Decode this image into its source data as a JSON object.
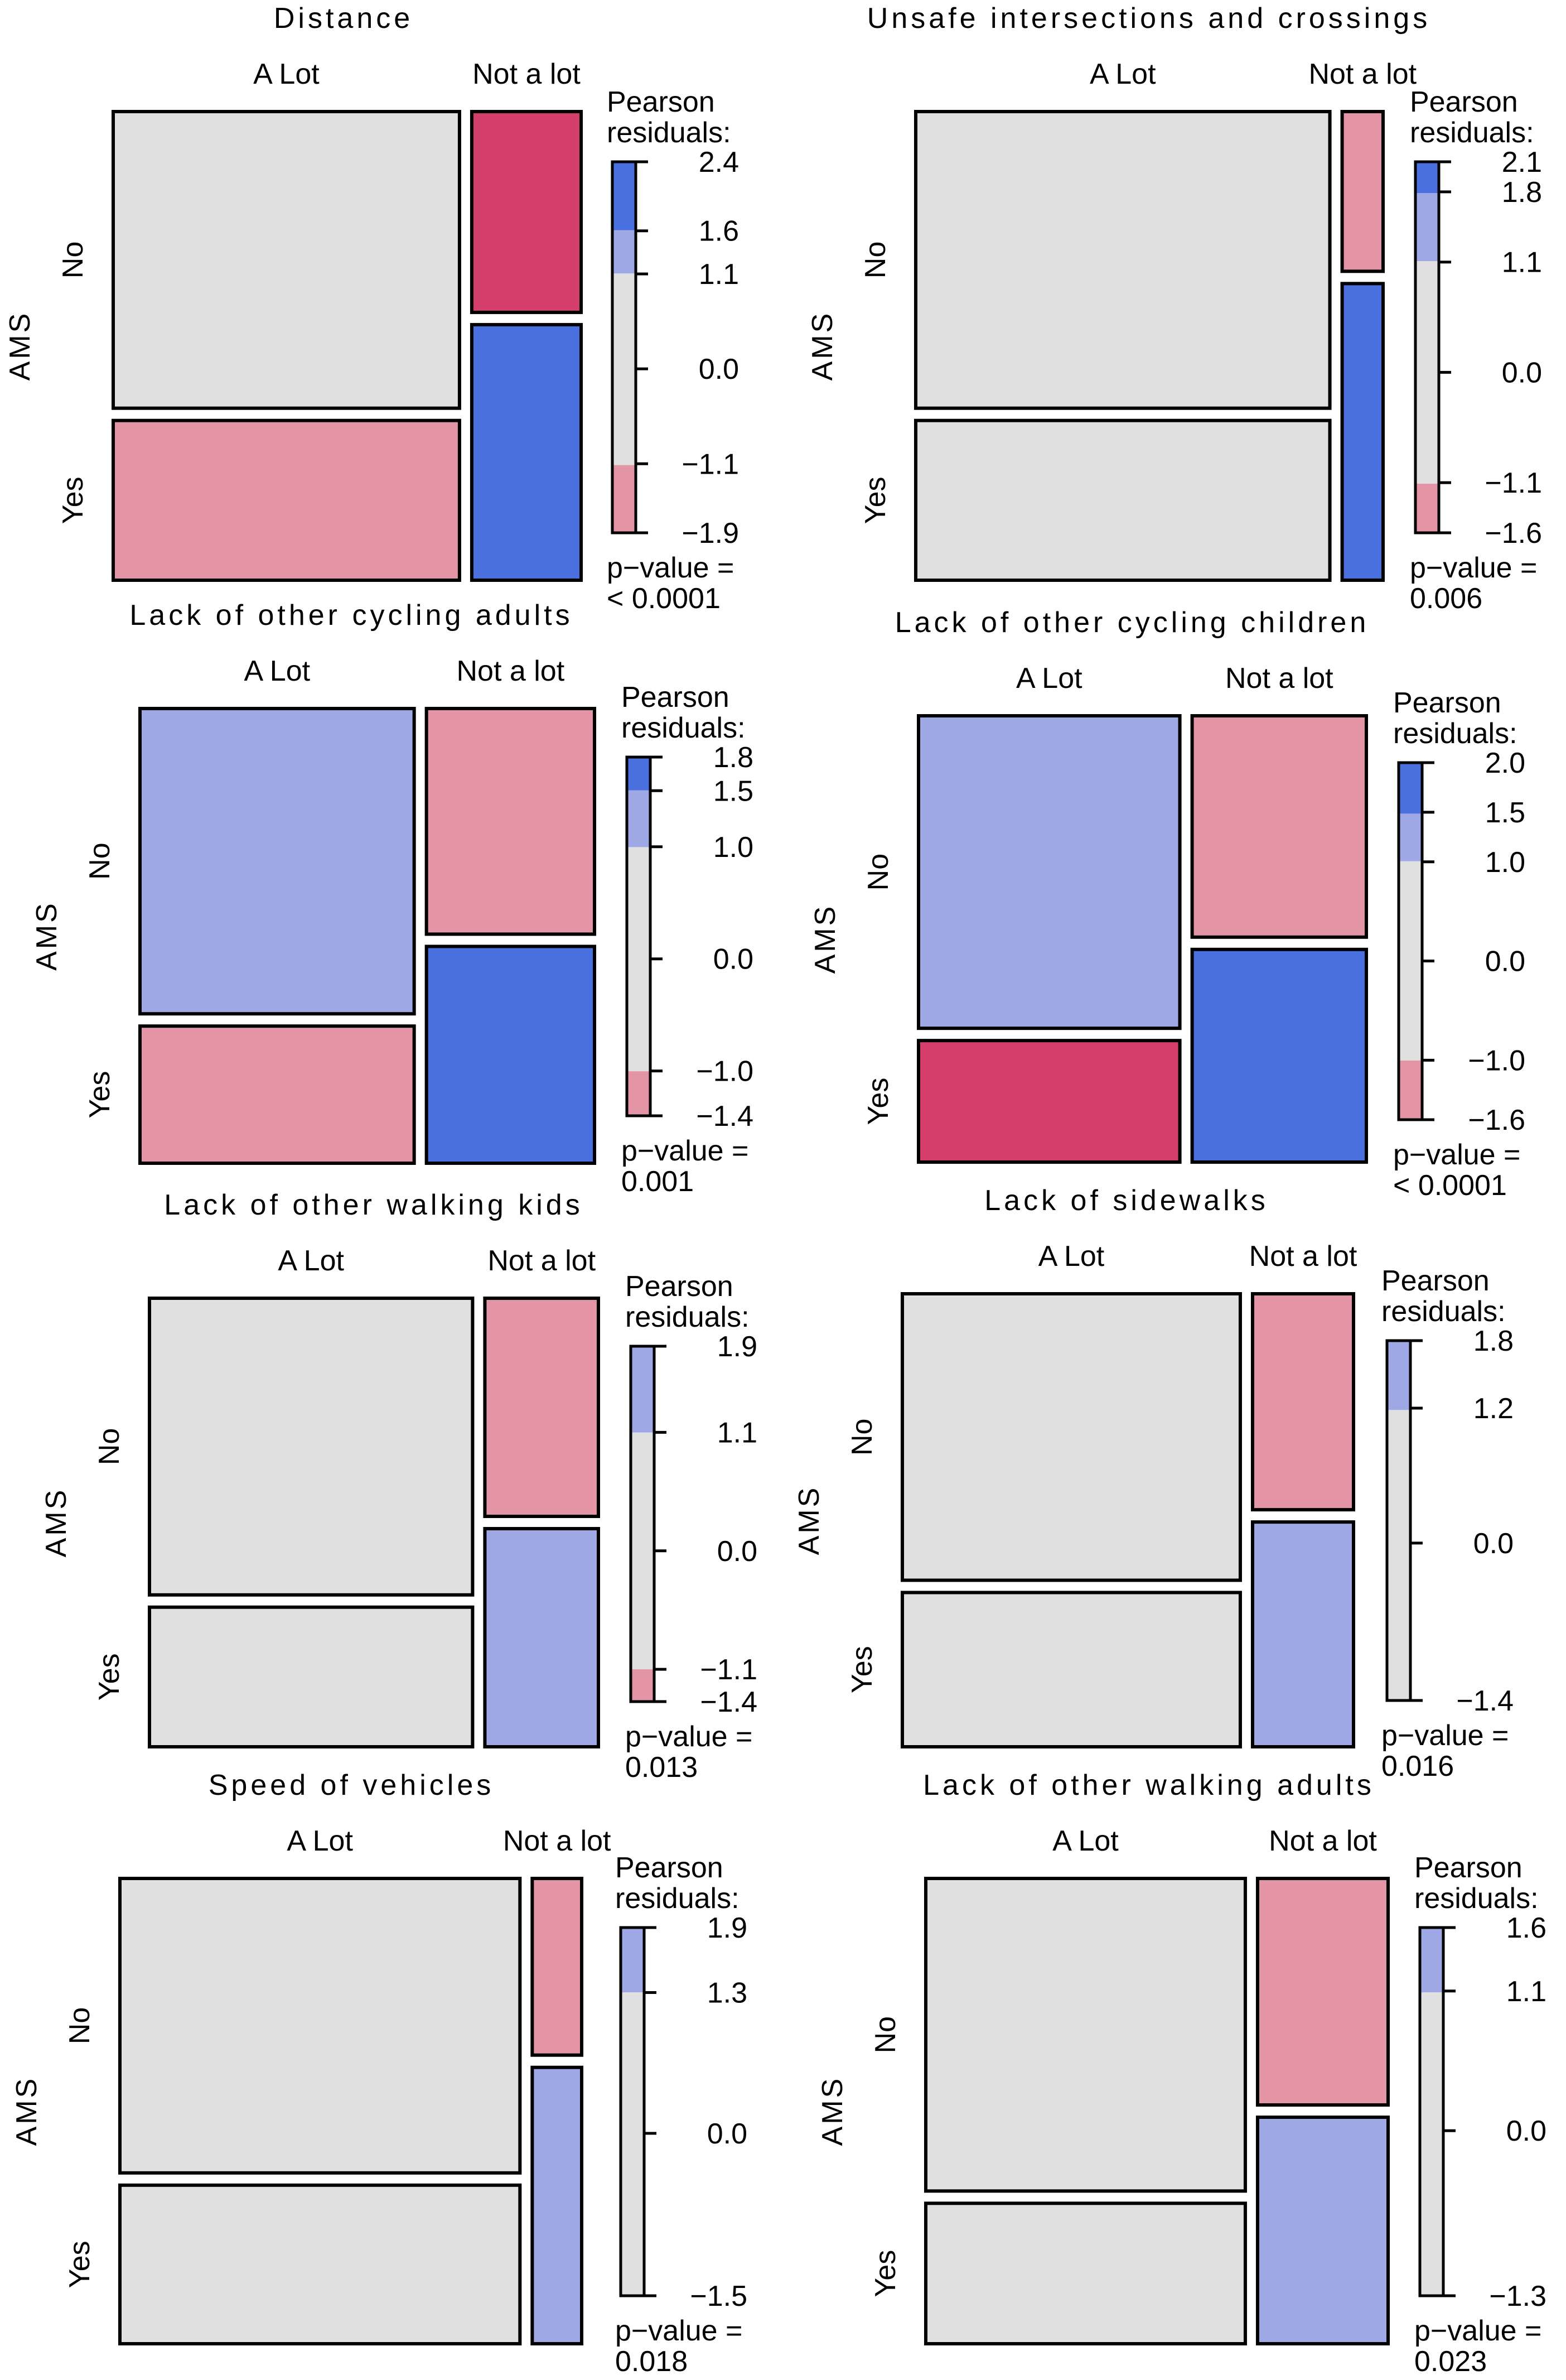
{
  "figure": {
    "colors": {
      "neutral": "#e0e0e0",
      "pos_strong": "#4a70e0",
      "pos_mid": "#9ea8e4",
      "neg_mid": "#e394a5",
      "neg_strong": "#d43e6a",
      "border": "#000000"
    }
  },
  "chart_data": [
    {
      "type": "mosaic",
      "title": "Distance",
      "row_variable": "AMS",
      "rows": [
        "No",
        "Yes"
      ],
      "columns": [
        "A Lot",
        "Not a lot"
      ],
      "col_proportions": [
        0.76,
        0.24
      ],
      "row_proportions_within_col": [
        [
          0.65,
          0.35
        ],
        [
          0.44,
          0.56
        ]
      ],
      "cell_shading": [
        [
          "neutral",
          "neutral"
        ],
        [
          "neg_strong",
          "pos_strong"
        ]
      ],
      "cell_shading_note": "",
      "legend_title": [
        "Pearson",
        "residuals:"
      ],
      "legend_range": [
        -1.9,
        2.4
      ],
      "legend_ticks": [
        "2.4",
        "1.6",
        "1.1",
        "0.0",
        "−1.1",
        "−1.9"
      ],
      "legend_tick_values": [
        2.4,
        1.6,
        1.1,
        0.0,
        -1.1,
        -1.9
      ],
      "pvalue_label": "p−value =",
      "pvalue": "< 0.0001"
    },
    {
      "type": "mosaic",
      "title": "Unsafe intersections and crossings",
      "row_variable": "AMS",
      "rows": [
        "No",
        "Yes"
      ],
      "columns": [
        "A Lot",
        "Not a lot"
      ],
      "col_proportions": [
        0.91,
        0.09
      ],
      "row_proportions_within_col": [
        [
          0.65,
          0.35
        ],
        [
          0.35,
          0.65
        ]
      ],
      "legend_title": [
        "Pearson",
        "residuals:"
      ],
      "legend_range": [
        -1.6,
        2.1
      ],
      "legend_ticks": [
        "2.1",
        "1.8",
        "1.1",
        "0.0",
        "−1.1",
        "−1.6"
      ],
      "legend_tick_values": [
        2.1,
        1.8,
        1.1,
        0.0,
        -1.1,
        -1.6
      ],
      "pvalue_label": "p−value =",
      "pvalue": "0.006"
    },
    {
      "type": "mosaic",
      "title": "Lack of other cycling adults",
      "row_variable": "AMS",
      "rows": [
        "No",
        "Yes"
      ],
      "columns": [
        "A Lot",
        "Not a lot"
      ],
      "col_proportions": [
        0.62,
        0.38
      ],
      "row_proportions_within_col": [
        [
          0.69,
          0.31
        ],
        [
          0.51,
          0.49
        ]
      ],
      "legend_title": [
        "Pearson",
        "residuals:"
      ],
      "legend_range": [
        -1.4,
        1.8
      ],
      "legend_ticks": [
        "1.8",
        "1.5",
        "1.0",
        "0.0",
        "−1.0",
        "−1.4"
      ],
      "legend_tick_values": [
        1.8,
        1.5,
        1.0,
        0.0,
        -1.0,
        -1.4
      ],
      "pvalue_label": "p−value =",
      "pvalue": "0.001"
    },
    {
      "type": "mosaic",
      "title": "Lack of other cycling children",
      "row_variable": "AMS",
      "rows": [
        "No",
        "Yes"
      ],
      "columns": [
        "A Lot",
        "Not a lot"
      ],
      "col_proportions": [
        0.6,
        0.4
      ],
      "row_proportions_within_col": [
        [
          0.72,
          0.28
        ],
        [
          0.51,
          0.49
        ]
      ],
      "legend_title": [
        "Pearson",
        "residuals:"
      ],
      "legend_range": [
        -1.6,
        2.0
      ],
      "legend_ticks": [
        "2.0",
        "1.5",
        "1.0",
        "0.0",
        "−1.0",
        "−1.6"
      ],
      "legend_tick_values": [
        2.0,
        1.5,
        1.0,
        0.0,
        -1.0,
        -1.6
      ],
      "pvalue_label": "p−value =",
      "pvalue": "< 0.0001"
    },
    {
      "type": "mosaic",
      "title": "Lack of other walking kids",
      "row_variable": "AMS",
      "rows": [
        "No",
        "Yes"
      ],
      "columns": [
        "A Lot",
        "Not a lot"
      ],
      "col_proportions": [
        0.74,
        0.26
      ],
      "row_proportions_within_col": [
        [
          0.68,
          0.32
        ],
        [
          0.5,
          0.5
        ]
      ],
      "legend_title": [
        "Pearson",
        "residuals:"
      ],
      "legend_range": [
        -1.4,
        1.9
      ],
      "legend_ticks": [
        "1.9",
        "1.1",
        "0.0",
        "−1.1",
        "−1.4"
      ],
      "legend_tick_values": [
        1.9,
        1.1,
        0.0,
        -1.1,
        -1.4
      ],
      "pvalue_label": "p−value =",
      "pvalue": "0.013"
    },
    {
      "type": "mosaic",
      "title": "Lack of sidewalks",
      "row_variable": "AMS",
      "rows": [
        "No",
        "Yes"
      ],
      "columns": [
        "A Lot",
        "Not a lot"
      ],
      "col_proportions": [
        0.77,
        0.23
      ],
      "row_proportions_within_col": [
        [
          0.65,
          0.35
        ],
        [
          0.49,
          0.51
        ]
      ],
      "legend_title": [
        "Pearson",
        "residuals:"
      ],
      "legend_range": [
        -1.4,
        1.8
      ],
      "legend_ticks": [
        "1.8",
        "1.2",
        "0.0",
        "−1.4"
      ],
      "legend_tick_values": [
        1.8,
        1.2,
        0.0,
        -1.4
      ],
      "pvalue_label": "p−value =",
      "pvalue": "0.016"
    },
    {
      "type": "mosaic",
      "title": "Speed of vehicles",
      "row_variable": "AMS",
      "rows": [
        "No",
        "Yes"
      ],
      "columns": [
        "A Lot",
        "Not a lot"
      ],
      "col_proportions": [
        0.89,
        0.11
      ],
      "row_proportions_within_col": [
        [
          0.65,
          0.35
        ],
        [
          0.39,
          0.61
        ]
      ],
      "legend_title": [
        "Pearson",
        "residuals:"
      ],
      "legend_range": [
        -1.5,
        1.9
      ],
      "legend_ticks": [
        "1.9",
        "1.3",
        "0.0",
        "−1.5"
      ],
      "legend_tick_values": [
        1.9,
        1.3,
        0.0,
        -1.5
      ],
      "pvalue_label": "p−value =",
      "pvalue": "0.018"
    },
    {
      "type": "mosaic",
      "title": "Lack of other walking adults",
      "row_variable": "AMS",
      "rows": [
        "No",
        "Yes"
      ],
      "columns": [
        "A Lot",
        "Not a lot"
      ],
      "col_proportions": [
        0.71,
        0.29
      ],
      "row_proportions_within_col": [
        [
          0.69,
          0.31
        ],
        [
          0.5,
          0.5
        ]
      ],
      "legend_title": [
        "Pearson",
        "residuals:"
      ],
      "legend_range": [
        -1.3,
        1.6
      ],
      "legend_ticks": [
        "1.6",
        "1.1",
        "0.0",
        "−1.3"
      ],
      "legend_tick_values": [
        1.6,
        1.1,
        0.0,
        -1.3
      ],
      "pvalue_label": "p−value =",
      "pvalue": "0.023"
    }
  ]
}
